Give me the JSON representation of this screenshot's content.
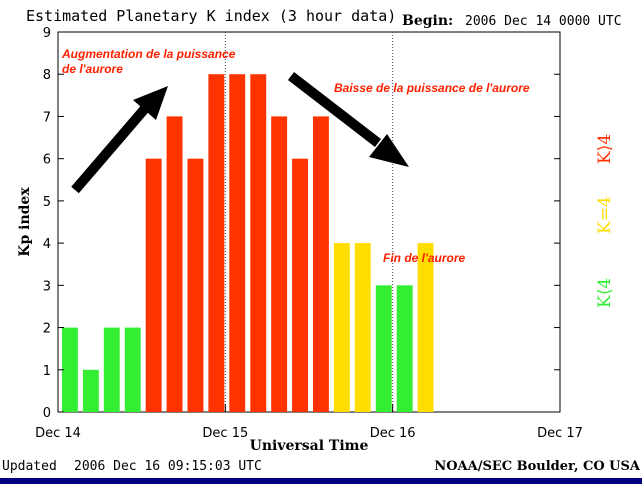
{
  "chart_data": {
    "type": "bar",
    "title": "Estimated Planetary K index (3 hour data)",
    "begin_label": "Begin:",
    "begin_value": "2006 Dec 14 0000 UTC",
    "ylabel": "Kp index",
    "xlabel": "Universal Time",
    "ylim": [
      0,
      9
    ],
    "yticks": [
      0,
      1,
      2,
      3,
      4,
      5,
      6,
      7,
      8,
      9
    ],
    "xticks": [
      "Dec 14",
      "Dec 15",
      "Dec 16",
      "Dec 17"
    ],
    "x_unit": "3-hour interval",
    "values": [
      2,
      1,
      2,
      2,
      6,
      7,
      6,
      8,
      8,
      8,
      7,
      6,
      7,
      4,
      4,
      3,
      3,
      4
    ],
    "bar_colors": [
      "#33ee33",
      "#33ee33",
      "#33ee33",
      "#33ee33",
      "#ff3300",
      "#ff3300",
      "#ff3300",
      "#ff3300",
      "#ff3300",
      "#ff3300",
      "#ff3300",
      "#ff3300",
      "#ff3300",
      "#ffdd00",
      "#ffdd00",
      "#33ee33",
      "#33ee33",
      "#ffdd00"
    ],
    "legend": [
      {
        "label": "K⟨4",
        "color": "#33ee33"
      },
      {
        "label": "K=4",
        "color": "#ffdd00"
      },
      {
        "label": "K⟩4",
        "color": "#ff3300"
      }
    ],
    "annotations": {
      "rise_line1": "Augmentation de la puissance",
      "rise_line2": "de l'aurore",
      "decline": "Baisse de la puissance de l'aurore",
      "end": "Fin de l'aurore"
    },
    "grid": "dotted vertical lines at day boundaries"
  },
  "footer": {
    "updated_label": "Updated",
    "updated_value": "2006 Dec 16 09:15:03 UTC",
    "source": "NOAA/SEC Boulder, CO USA"
  },
  "colors": {
    "low": "#33ee33",
    "storm_threshold": "#ffdd00",
    "storm": "#ff3300",
    "bottom_strip": "#000080"
  }
}
